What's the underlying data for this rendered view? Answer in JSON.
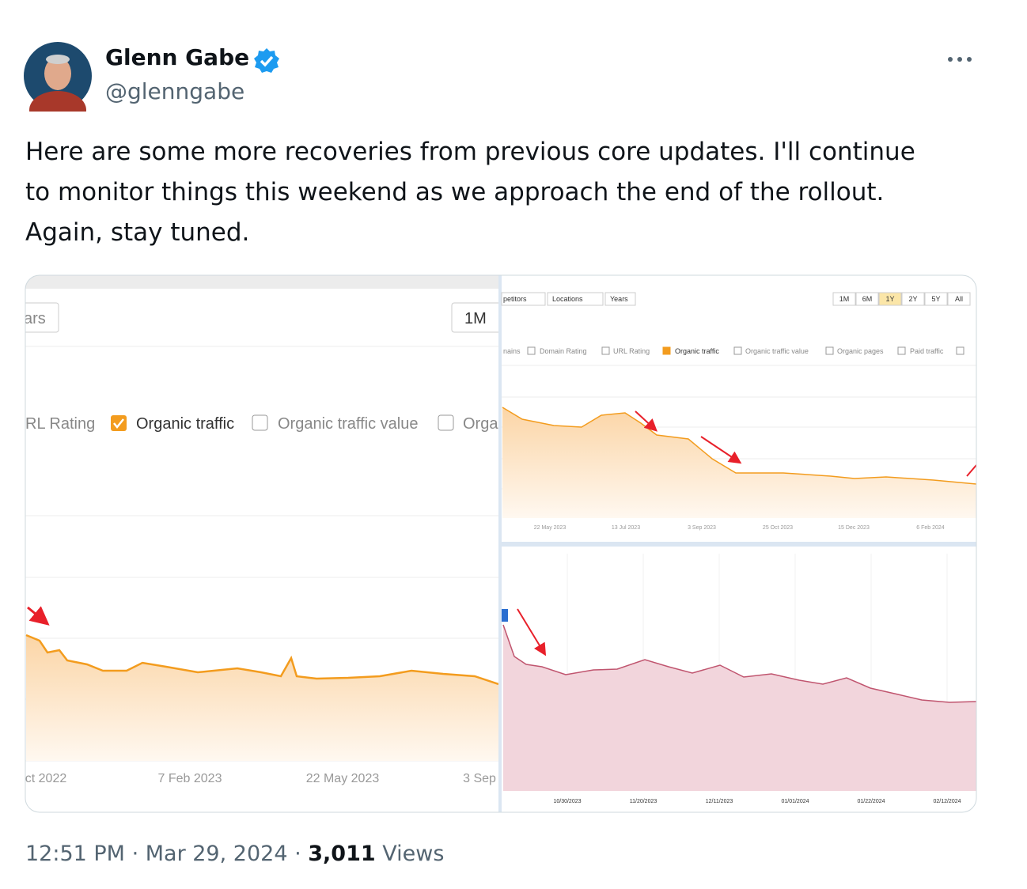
{
  "author": {
    "name": "Glenn Gabe",
    "handle": "@glenngabe"
  },
  "tweet": {
    "lines": [
      "Here are some more recoveries from previous core updates. I'll continue",
      "to monitor things this weekend as we approach the end of the rollout.",
      "Again, stay tuned."
    ]
  },
  "image": {
    "left": {
      "period_button": "ars",
      "range_button": "1M",
      "legend": [
        "RL Rating",
        "Organic traffic",
        "Organic traffic value",
        "Orga"
      ],
      "x_labels": [
        "ct 2022",
        "7 Feb 2023",
        "22 May 2023",
        "3 Sep"
      ]
    },
    "top_right": {
      "filters": [
        "petitors",
        "Locations",
        "Years"
      ],
      "ranges": [
        "1M",
        "6M",
        "1Y",
        "2Y",
        "5Y",
        "All"
      ],
      "legend": [
        "nains",
        "Domain Rating",
        "URL Rating",
        "Organic traffic",
        "Organic traffic value",
        "Organic pages",
        "Paid traffic"
      ],
      "x_labels": [
        "22 May 2023",
        "13 Jul 2023",
        "3 Sep 2023",
        "25 Oct 2023",
        "15 Dec 2023",
        "6 Feb 2024"
      ]
    },
    "bottom_right": {
      "x_labels": [
        "10/30/2023",
        "11/20/2023",
        "12/11/2023",
        "01/01/2024",
        "01/22/2024",
        "02/12/2024"
      ]
    }
  },
  "footer": {
    "time": "12:51 PM",
    "date": "Mar 29, 2024",
    "views_count": "3,011",
    "views_label": "Views"
  }
}
